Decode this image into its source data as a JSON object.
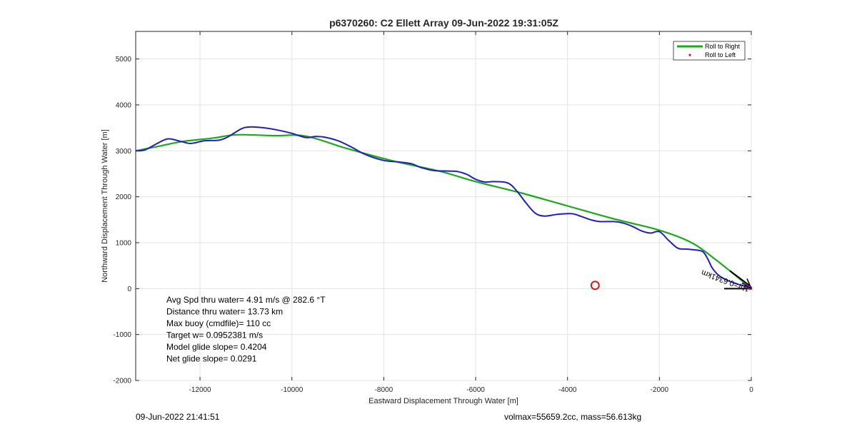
{
  "chart_data": {
    "type": "line",
    "title": "p6370260: C2 Ellett Array 09-Jun-2022 19:31:05Z",
    "xlabel": "Eastward Displacement Through Water [m]",
    "ylabel": "Northward Displacement Through Water [m]",
    "xlim": [
      -13400,
      0
    ],
    "ylim": [
      -2000,
      5600
    ],
    "xticks": [
      -12000,
      -10000,
      -8000,
      -6000,
      -4000,
      -2000,
      0
    ],
    "yticks": [
      -2000,
      -1000,
      0,
      1000,
      2000,
      3000,
      4000,
      5000
    ],
    "grid": true,
    "legend_position": "top-right",
    "legend": [
      {
        "name": "Roll to Right",
        "color": "#1aab1a",
        "style": "line"
      },
      {
        "name": "Roll to Left",
        "color": "#e31a1a",
        "style": "marker"
      }
    ],
    "series": [
      {
        "name": "Roll to Right",
        "color": "#1aab1a",
        "x": [
          -13400,
          -12900,
          -12400,
          -11700,
          -11200,
          -10400,
          -9700,
          -8800,
          -7800,
          -6800,
          -6000,
          -5000,
          -4000,
          -3000,
          -2000,
          -1300,
          -800,
          -300,
          0
        ],
        "y": [
          3000,
          3100,
          3200,
          3280,
          3350,
          3330,
          3320,
          3050,
          2780,
          2560,
          2330,
          2080,
          1800,
          1520,
          1270,
          1000,
          650,
          250,
          0
        ]
      },
      {
        "color": "#1f1fc4",
        "x": [
          -13400,
          -13200,
          -12950,
          -12700,
          -12400,
          -12200,
          -11900,
          -11600,
          -11400,
          -11100,
          -10900,
          -10600,
          -10300,
          -10000,
          -9700,
          -9500,
          -9300,
          -9000,
          -8700,
          -8400,
          -8000,
          -7700,
          -7400,
          -7200,
          -6900,
          -6600,
          -6400,
          -6200,
          -6000,
          -5800,
          -5600,
          -5300,
          -5100,
          -4900,
          -4700,
          -4500,
          -4200,
          -3900,
          -3700,
          -3500,
          -3300,
          -3000,
          -2800,
          -2600,
          -2400,
          -2200,
          -2000,
          -1800,
          -1600,
          -1400,
          -1200,
          -1050,
          -950,
          -850,
          -700,
          -500,
          -300,
          -100,
          0
        ],
        "y": [
          3000,
          3020,
          3150,
          3260,
          3200,
          3160,
          3220,
          3230,
          3300,
          3480,
          3520,
          3500,
          3450,
          3380,
          3290,
          3310,
          3300,
          3220,
          3080,
          2920,
          2790,
          2760,
          2720,
          2640,
          2570,
          2560,
          2550,
          2490,
          2380,
          2320,
          2330,
          2300,
          2120,
          1860,
          1640,
          1580,
          1620,
          1630,
          1570,
          1500,
          1460,
          1460,
          1430,
          1360,
          1260,
          1210,
          1240,
          1050,
          880,
          860,
          840,
          800,
          650,
          450,
          280,
          170,
          100,
          40,
          0
        ]
      }
    ],
    "annotation": "1hr=0.6341km",
    "start_marker": {
      "x": -3400,
      "y": 70,
      "color": "#d61a1a"
    }
  },
  "stats": [
    "Avg Spd thru water=  4.91 m/s @ 282.6 °T",
    "Distance thru water= 13.73 km",
    "Max buoy (cmdfile)= 110 cc",
    "Target w= 0.0952381 m/s",
    "Model glide slope= 0.4204",
    "Net glide slope= 0.0291"
  ],
  "footer": {
    "timestamp": "09-Jun-2022 21:41:51",
    "vol_mass": "volmax=55659.2cc, mass=56.613kg"
  }
}
